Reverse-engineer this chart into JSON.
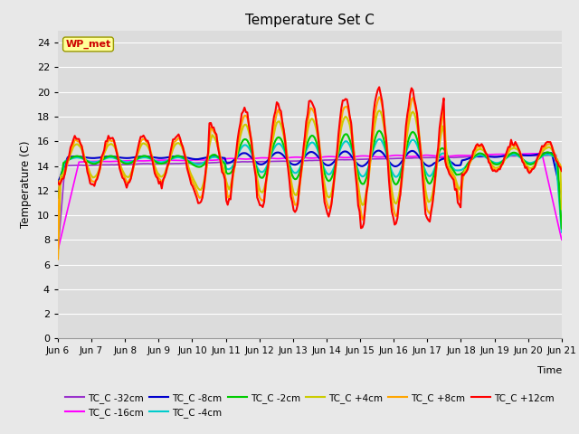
{
  "title": "Temperature Set C",
  "xlabel": "Time",
  "ylabel": "Temperature (C)",
  "ylim": [
    0,
    25
  ],
  "yticks": [
    0,
    2,
    4,
    6,
    8,
    10,
    12,
    14,
    16,
    18,
    20,
    22,
    24
  ],
  "xtick_labels": [
    "Jun 6",
    "Jun 7",
    "Jun 8",
    "Jun 9",
    "Jun 10",
    "Jun 11",
    "Jun 12",
    "Jun 13",
    "Jun 14",
    "Jun 15",
    "Jun 16",
    "Jun 17",
    "Jun 18",
    "Jun 19",
    "Jun 20",
    "Jun 21"
  ],
  "series_colors": {
    "TC_C -32cm": "#9932CC",
    "TC_C -16cm": "#FF00FF",
    "TC_C -8cm": "#0000CD",
    "TC_C -4cm": "#00CCCC",
    "TC_C -2cm": "#00CC00",
    "TC_C +4cm": "#CCCC00",
    "TC_C +8cm": "#FFA500",
    "TC_C +12cm": "#FF0000"
  },
  "wp_met_box_color": "#FFFF99",
  "wp_met_text_color": "#CC0000",
  "fig_bg_color": "#E8E8E8",
  "plot_bg_color": "#DCDCDC",
  "grid_color": "#FFFFFF"
}
